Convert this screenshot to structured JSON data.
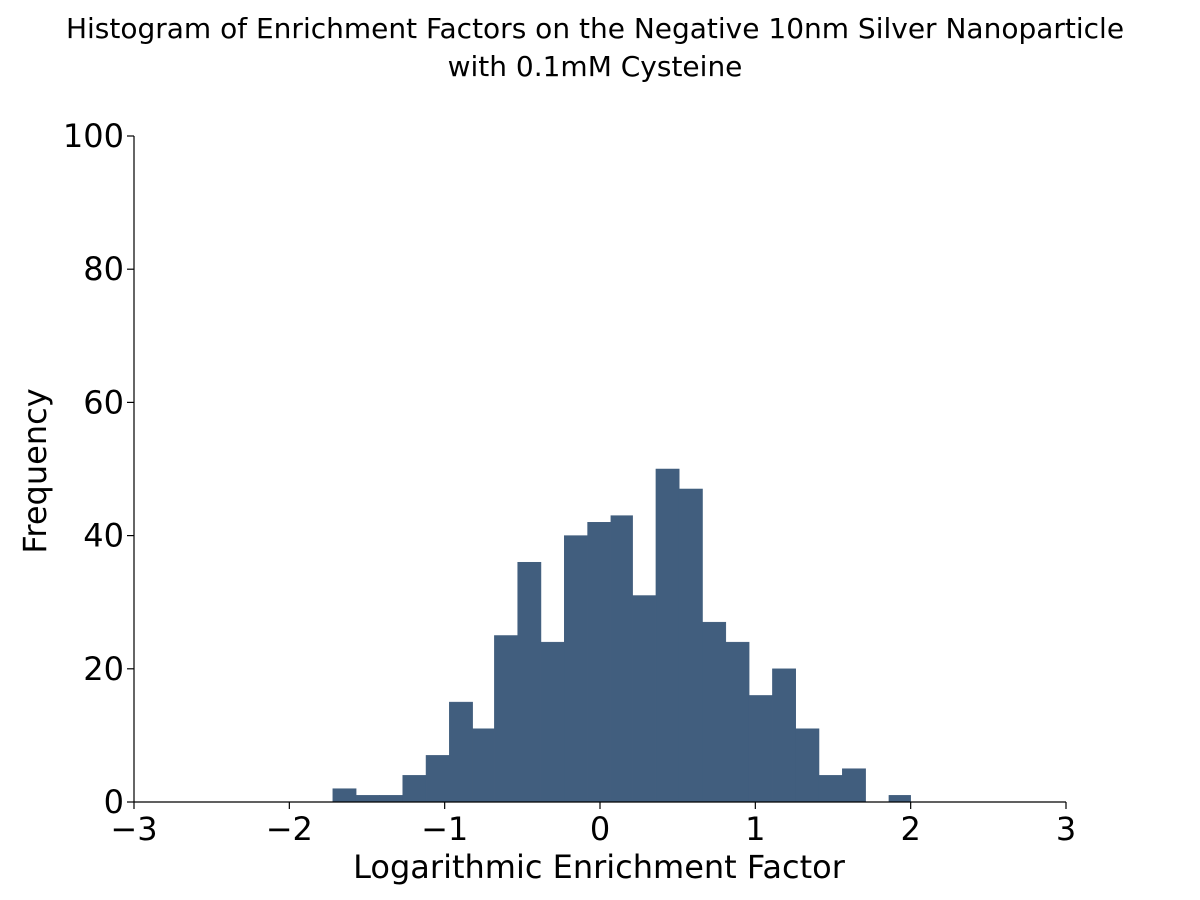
{
  "chart_data": {
    "type": "bar",
    "title_lines": [
      "Histogram of Enrichment Factors on the Negative 10nm Silver Nanoparticle",
      "with 0.1mM Cysteine"
    ],
    "xlabel": "Logarithmic Enrichment Factor",
    "ylabel": "Frequency",
    "xlim": [
      -3,
      3
    ],
    "ylim": [
      0,
      100
    ],
    "x_ticks": [
      -3,
      -2,
      -1,
      0,
      1,
      2,
      3
    ],
    "x_tick_labels": [
      "−3",
      "−2",
      "−1",
      "0",
      "1",
      "2",
      "3"
    ],
    "y_ticks": [
      0,
      20,
      40,
      60,
      80,
      100
    ],
    "y_tick_labels": [
      "0",
      "20",
      "40",
      "60",
      "80",
      "100"
    ],
    "bar_color": "#415e7e",
    "grid": false,
    "bins": [
      {
        "x0": -1.72,
        "x1": -1.57,
        "value": 2
      },
      {
        "x0": -1.57,
        "x1": -1.42,
        "value": 1
      },
      {
        "x0": -1.42,
        "x1": -1.27,
        "value": 1
      },
      {
        "x0": -1.27,
        "x1": -1.12,
        "value": 4
      },
      {
        "x0": -1.12,
        "x1": -0.97,
        "value": 7
      },
      {
        "x0": -0.97,
        "x1": -0.82,
        "value": 15
      },
      {
        "x0": -0.82,
        "x1": -0.68,
        "value": 11
      },
      {
        "x0": -0.68,
        "x1": -0.53,
        "value": 25
      },
      {
        "x0": -0.53,
        "x1": -0.38,
        "value": 36
      },
      {
        "x0": -0.38,
        "x1": -0.23,
        "value": 24
      },
      {
        "x0": -0.23,
        "x1": -0.08,
        "value": 40
      },
      {
        "x0": -0.08,
        "x1": 0.07,
        "value": 42
      },
      {
        "x0": 0.07,
        "x1": 0.21,
        "value": 43
      },
      {
        "x0": 0.21,
        "x1": 0.36,
        "value": 31
      },
      {
        "x0": 0.36,
        "x1": 0.51,
        "value": 50
      },
      {
        "x0": 0.51,
        "x1": 0.66,
        "value": 47
      },
      {
        "x0": 0.66,
        "x1": 0.81,
        "value": 27
      },
      {
        "x0": 0.81,
        "x1": 0.96,
        "value": 24
      },
      {
        "x0": 0.96,
        "x1": 1.11,
        "value": 16
      },
      {
        "x0": 1.11,
        "x1": 1.26,
        "value": 20
      },
      {
        "x0": 1.26,
        "x1": 1.41,
        "value": 11
      },
      {
        "x0": 1.41,
        "x1": 1.56,
        "value": 4
      },
      {
        "x0": 1.56,
        "x1": 1.71,
        "value": 5
      },
      {
        "x0": 1.71,
        "x1": 1.86,
        "value": 0
      },
      {
        "x0": 1.86,
        "x1": 2.0,
        "value": 1
      }
    ]
  }
}
